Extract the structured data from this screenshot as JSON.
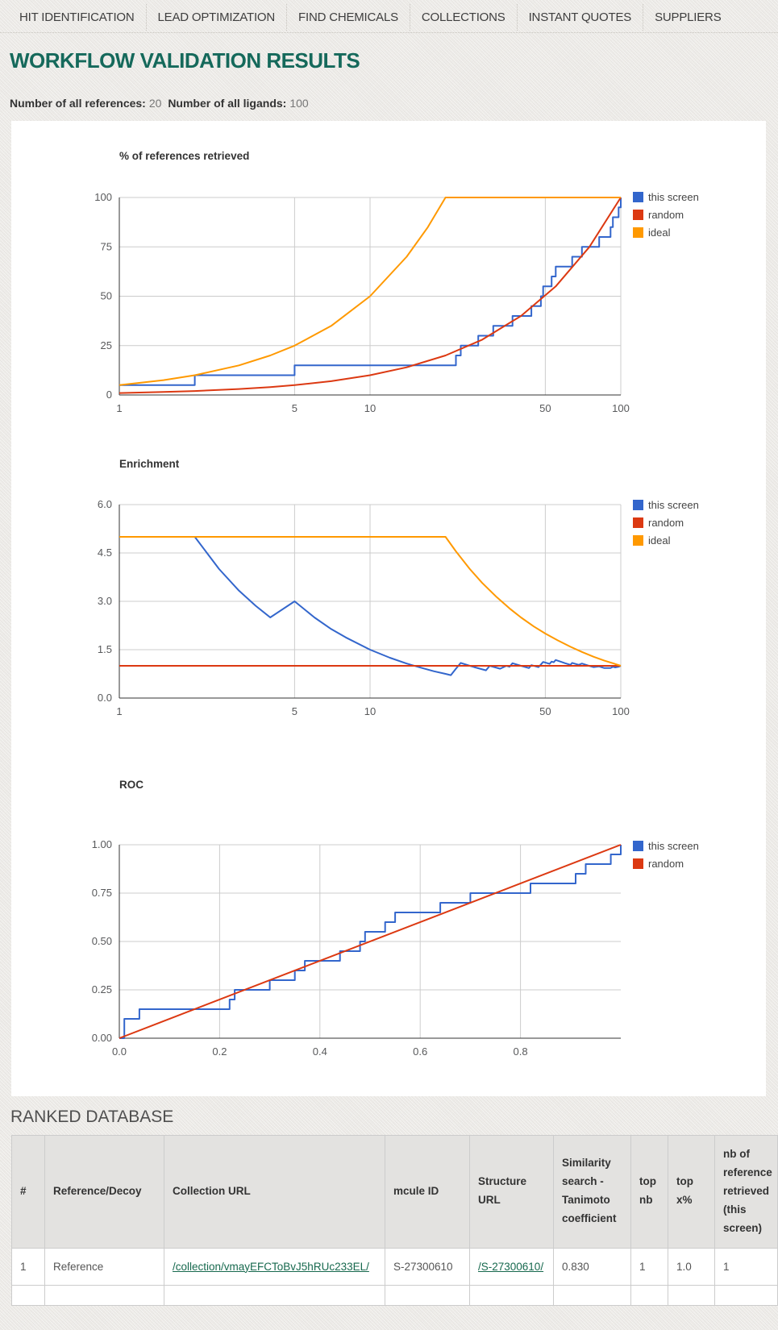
{
  "nav": {
    "items": [
      "HIT IDENTIFICATION",
      "LEAD OPTIMIZATION",
      "FIND CHEMICALS",
      "COLLECTIONS",
      "INSTANT QUOTES",
      "SUPPLIERS"
    ]
  },
  "page": {
    "title": "WORKFLOW VALIDATION RESULTS"
  },
  "summary": {
    "references_label": "Number of all references:",
    "references_value": "20",
    "ligands_label": "Number of all ligands:",
    "ligands_value": "100"
  },
  "colors": {
    "accent_green": "#15695B",
    "link_green": "#17694E",
    "series_blue": "#3366CC",
    "series_red": "#DC3912",
    "series_orange": "#FF9900",
    "grid": "#CCCCCC",
    "axis": "#333333"
  },
  "chart_data": [
    {
      "type": "line",
      "title": "% of references retrieved",
      "xlabel": "",
      "ylabel": "",
      "x_scale": "log",
      "x_range": [
        1,
        100
      ],
      "y_range": [
        0,
        100
      ],
      "x_ticks": [
        1,
        5,
        10,
        50,
        100
      ],
      "x_tick_labels": [
        "1",
        "5",
        "10",
        "50",
        "100"
      ],
      "y_ticks": [
        0,
        25,
        50,
        75,
        100
      ],
      "y_tick_labels": [
        "0",
        "25",
        "50",
        "75",
        "100"
      ],
      "grid": true,
      "legend_position": "right",
      "series": [
        {
          "name": "this screen",
          "color": "#3366CC",
          "step": true,
          "points": [
            [
              1,
              5
            ],
            [
              2,
              10
            ],
            [
              5,
              15
            ],
            [
              22,
              20
            ],
            [
              23,
              25
            ],
            [
              27,
              30
            ],
            [
              31,
              35
            ],
            [
              37,
              40
            ],
            [
              44,
              45
            ],
            [
              48,
              50
            ],
            [
              49,
              55
            ],
            [
              53,
              60
            ],
            [
              55,
              65
            ],
            [
              64,
              70
            ],
            [
              70,
              75
            ],
            [
              82,
              80
            ],
            [
              91,
              85
            ],
            [
              93,
              90
            ],
            [
              98,
              95
            ],
            [
              100,
              100
            ]
          ]
        },
        {
          "name": "random",
          "color": "#DC3912",
          "step": false,
          "points": [
            [
              1,
              1
            ],
            [
              1.5,
              1.5
            ],
            [
              2,
              2
            ],
            [
              3,
              3
            ],
            [
              4,
              4
            ],
            [
              5,
              5
            ],
            [
              7,
              7
            ],
            [
              10,
              10
            ],
            [
              14,
              14
            ],
            [
              20,
              20
            ],
            [
              28,
              28
            ],
            [
              40,
              40
            ],
            [
              55,
              55
            ],
            [
              75,
              75
            ],
            [
              100,
              100
            ]
          ]
        },
        {
          "name": "ideal",
          "color": "#FF9900",
          "step": false,
          "points": [
            [
              1,
              5
            ],
            [
              1.5,
              7.5
            ],
            [
              2,
              10
            ],
            [
              3,
              15
            ],
            [
              4,
              20
            ],
            [
              5,
              25
            ],
            [
              7,
              35
            ],
            [
              10,
              50
            ],
            [
              14,
              70
            ],
            [
              17,
              85
            ],
            [
              20,
              100
            ],
            [
              100,
              100
            ]
          ]
        }
      ]
    },
    {
      "type": "line",
      "title": "Enrichment",
      "xlabel": "",
      "ylabel": "",
      "x_scale": "log",
      "x_range": [
        1,
        100
      ],
      "y_range": [
        0,
        6
      ],
      "x_ticks": [
        1,
        5,
        10,
        50,
        100
      ],
      "x_tick_labels": [
        "1",
        "5",
        "10",
        "50",
        "100"
      ],
      "y_ticks": [
        0,
        1.5,
        3,
        4.5,
        6
      ],
      "y_tick_labels": [
        "0.0",
        "1.5",
        "3.0",
        "4.5",
        "6.0"
      ],
      "grid": true,
      "legend_position": "right",
      "series": [
        {
          "name": "this screen",
          "color": "#3366CC",
          "step": false,
          "points": [
            [
              1,
              5
            ],
            [
              2,
              5
            ],
            [
              2.5,
              4
            ],
            [
              3,
              3.33
            ],
            [
              3.5,
              2.86
            ],
            [
              4,
              2.5
            ],
            [
              5,
              3
            ],
            [
              6,
              2.5
            ],
            [
              7,
              2.14
            ],
            [
              8,
              1.88
            ],
            [
              10,
              1.5
            ],
            [
              12,
              1.25
            ],
            [
              14,
              1.07
            ],
            [
              16,
              0.94
            ],
            [
              18,
              0.83
            ],
            [
              20,
              0.75
            ],
            [
              21,
              0.71
            ],
            [
              22,
              0.91
            ],
            [
              23,
              1.09
            ],
            [
              25,
              1.0
            ],
            [
              26,
              0.96
            ],
            [
              29,
              0.86
            ],
            [
              30,
              1.0
            ],
            [
              33,
              0.91
            ],
            [
              35,
              1.0
            ],
            [
              36,
              0.97
            ],
            [
              37,
              1.08
            ],
            [
              40,
              1.0
            ],
            [
              43,
              0.93
            ],
            [
              44,
              1.02
            ],
            [
              47,
              0.96
            ],
            [
              48,
              1.04
            ],
            [
              49,
              1.12
            ],
            [
              52,
              1.06
            ],
            [
              53,
              1.13
            ],
            [
              54,
              1.11
            ],
            [
              55,
              1.18
            ],
            [
              58,
              1.12
            ],
            [
              60,
              1.08
            ],
            [
              63,
              1.03
            ],
            [
              64,
              1.09
            ],
            [
              68,
              1.03
            ],
            [
              70,
              1.07
            ],
            [
              74,
              1.01
            ],
            [
              78,
              0.96
            ],
            [
              82,
              0.98
            ],
            [
              86,
              0.93
            ],
            [
              91,
              0.93
            ],
            [
              93,
              0.97
            ],
            [
              95,
              0.95
            ],
            [
              98,
              0.97
            ],
            [
              100,
              1.0
            ]
          ]
        },
        {
          "name": "random",
          "color": "#DC3912",
          "step": false,
          "points": [
            [
              1,
              1
            ],
            [
              100,
              1
            ]
          ]
        },
        {
          "name": "ideal",
          "color": "#FF9900",
          "step": false,
          "points": [
            [
              1,
              5
            ],
            [
              20,
              5
            ],
            [
              22,
              4.55
            ],
            [
              25,
              4
            ],
            [
              28,
              3.57
            ],
            [
              32,
              3.13
            ],
            [
              36,
              2.78
            ],
            [
              40,
              2.5
            ],
            [
              45,
              2.22
            ],
            [
              50,
              2
            ],
            [
              56,
              1.79
            ],
            [
              63,
              1.59
            ],
            [
              70,
              1.43
            ],
            [
              78,
              1.28
            ],
            [
              86,
              1.16
            ],
            [
              93,
              1.08
            ],
            [
              100,
              1
            ]
          ]
        }
      ]
    },
    {
      "type": "line",
      "title": "ROC",
      "xlabel": "",
      "ylabel": "",
      "x_scale": "linear",
      "x_range": [
        0,
        1
      ],
      "y_range": [
        0,
        1
      ],
      "x_ticks": [
        0,
        0.2,
        0.4,
        0.6,
        0.8
      ],
      "x_tick_labels": [
        "0.0",
        "0.2",
        "0.4",
        "0.6",
        "0.8"
      ],
      "y_ticks": [
        0,
        0.25,
        0.5,
        0.75,
        1
      ],
      "y_tick_labels": [
        "0.00",
        "0.25",
        "0.50",
        "0.75",
        "1.00"
      ],
      "grid": true,
      "legend_position": "right",
      "series": [
        {
          "name": "this screen",
          "color": "#3366CC",
          "step": true,
          "points": [
            [
              0,
              0
            ],
            [
              0.01,
              0.1
            ],
            [
              0.04,
              0.15
            ],
            [
              0.22,
              0.2
            ],
            [
              0.23,
              0.25
            ],
            [
              0.3,
              0.3
            ],
            [
              0.35,
              0.35
            ],
            [
              0.37,
              0.4
            ],
            [
              0.44,
              0.45
            ],
            [
              0.48,
              0.5
            ],
            [
              0.49,
              0.55
            ],
            [
              0.53,
              0.6
            ],
            [
              0.55,
              0.65
            ],
            [
              0.64,
              0.7
            ],
            [
              0.7,
              0.75
            ],
            [
              0.82,
              0.8
            ],
            [
              0.91,
              0.85
            ],
            [
              0.93,
              0.9
            ],
            [
              0.98,
              0.95
            ],
            [
              1,
              1
            ]
          ]
        },
        {
          "name": "random",
          "color": "#DC3912",
          "step": false,
          "points": [
            [
              0,
              0
            ],
            [
              1,
              1
            ]
          ]
        }
      ]
    }
  ],
  "ranked_database": {
    "heading": "RANKED DATABASE",
    "columns": [
      "#",
      "Reference/Decoy",
      "Collection URL",
      "mcule ID",
      "Structure URL",
      "Similarity search - Tanimoto coefficient",
      "top nb",
      "top x%",
      "nb of reference retrieved (this screen)"
    ],
    "rows": [
      {
        "cells": [
          {
            "text": "1",
            "link": false
          },
          {
            "text": "Reference",
            "link": false
          },
          {
            "text": "/collection/vmayEFCToBvJ5hRUc233EL/",
            "link": true
          },
          {
            "text": "S-27300610",
            "link": false
          },
          {
            "text": "/S-27300610/",
            "link": true
          },
          {
            "text": "0.830",
            "link": false
          },
          {
            "text": "1",
            "link": false
          },
          {
            "text": "1.0",
            "link": false
          },
          {
            "text": "1",
            "link": false
          }
        ]
      },
      {
        "cells": [
          {
            "text": "",
            "link": false
          },
          {
            "text": "",
            "link": false
          },
          {
            "text": "",
            "link": false
          },
          {
            "text": "",
            "link": false
          },
          {
            "text": "",
            "link": false
          },
          {
            "text": "",
            "link": false
          },
          {
            "text": "",
            "link": false
          },
          {
            "text": "",
            "link": false
          },
          {
            "text": "",
            "link": false
          }
        ]
      }
    ]
  }
}
